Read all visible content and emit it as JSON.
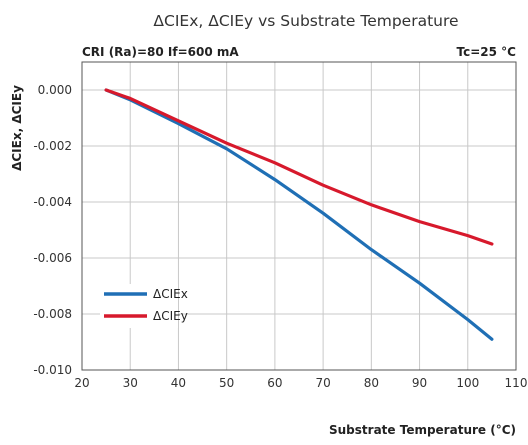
{
  "chart_data": {
    "type": "line",
    "title": "ΔCIEx, ΔCIEy vs Substrate Temperature",
    "condition_left": "CRI (Ra)=80  If=600 mA",
    "condition_right": "Tc=25 °C",
    "xlabel": "Substrate Temperature (°C)",
    "ylabel": "ΔCIEx, ΔCIEy",
    "xlim": [
      20,
      110
    ],
    "ylim": [
      -0.01,
      0.001
    ],
    "x_ticks": [
      20,
      30,
      40,
      50,
      60,
      70,
      80,
      90,
      100,
      110
    ],
    "x_tick_labels": [
      "20",
      "30",
      "40",
      "50",
      "60",
      "70",
      "80",
      "90",
      "100",
      "110"
    ],
    "y_ticks": [
      0.0,
      -0.002,
      -0.004,
      -0.006,
      -0.008,
      -0.01
    ],
    "y_tick_labels": [
      "0.000",
      "-0.002",
      "-0.004",
      "-0.006",
      "-0.008",
      "-0.010"
    ],
    "grid": true,
    "legend_position": "lower-left",
    "series": [
      {
        "name": "ΔCIEx",
        "color": "#1f6fb5",
        "x": [
          25,
          30,
          40,
          50,
          60,
          70,
          80,
          90,
          100,
          105
        ],
        "y": [
          0.0,
          -0.00035,
          -0.0012,
          -0.0021,
          -0.0032,
          -0.0044,
          -0.0057,
          -0.0069,
          -0.0082,
          -0.0089
        ]
      },
      {
        "name": "ΔCIEy",
        "color": "#d7192c",
        "x": [
          25,
          30,
          40,
          50,
          60,
          70,
          80,
          90,
          100,
          105
        ],
        "y": [
          0.0,
          -0.0003,
          -0.0011,
          -0.0019,
          -0.0026,
          -0.0034,
          -0.0041,
          -0.0047,
          -0.0052,
          -0.0055
        ]
      }
    ]
  }
}
